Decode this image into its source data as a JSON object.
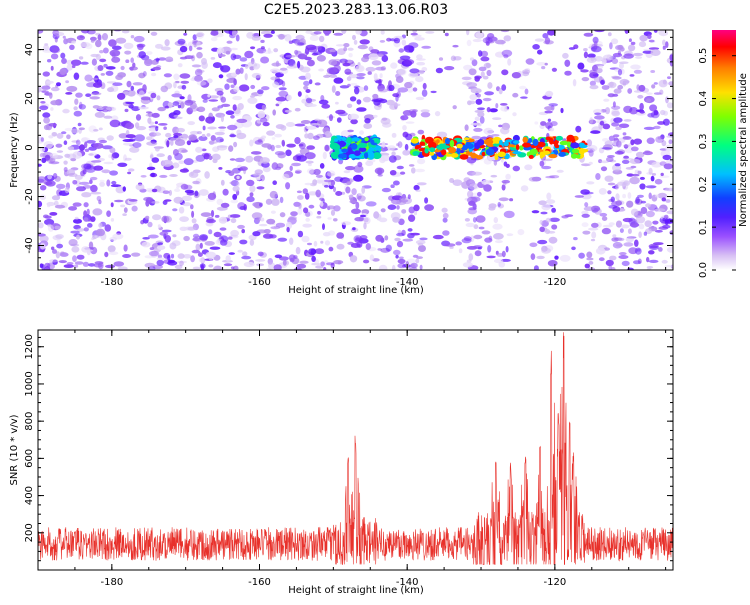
{
  "title": "C2E5.2023.283.13.06.R03",
  "colors": {
    "snr_line": "#e8312b",
    "frame": "#000000"
  },
  "chart_data": [
    {
      "type": "heatmap",
      "xlabel": "Height of straight line (km)",
      "ylabel": "Frequency (Hz)",
      "xlim": [
        -190,
        -104
      ],
      "ylim": [
        -50,
        48
      ],
      "x_ticks": [
        -180,
        -160,
        -140,
        -120
      ],
      "x_tick_labels": [
        "-180",
        "-160",
        "-140",
        "-120"
      ],
      "y_ticks": [
        -40,
        -20,
        0,
        20,
        40
      ],
      "y_tick_labels": [
        "-40",
        "-20",
        "0",
        "20",
        "40"
      ],
      "colorbar": {
        "label": "Normalized spectral amplitude",
        "range": [
          0,
          0.56
        ],
        "ticks": [
          0.0,
          0.1,
          0.2,
          0.3,
          0.4,
          0.5
        ],
        "tick_labels": [
          "0.0",
          "0.1",
          "0.2",
          "0.3",
          "0.4",
          "0.5"
        ],
        "colormap": [
          "#ffffff",
          "#c8a8f0",
          "#8030ff",
          "#2020ff",
          "#00c8ff",
          "#00ff60",
          "#e0ff00",
          "#ffa000",
          "#ff0000",
          "#ff0080"
        ]
      },
      "signal_band": {
        "frequency_hz": 0,
        "segments": [
          {
            "x_start": -150,
            "x_end": -144,
            "peak": 0.27
          },
          {
            "x_start": -139,
            "x_end": -116,
            "peak": 0.56
          }
        ]
      },
      "low_noise_regions": [
        {
          "x_start": -138,
          "x_end": -132
        },
        {
          "x_start": -126,
          "x_end": -122
        },
        {
          "x_start": -120,
          "x_end": -116
        }
      ]
    },
    {
      "type": "line",
      "xlabel": "Height of straight line (km)",
      "ylabel": "SNR (10 * v/v)",
      "xlim": [
        -190,
        -104
      ],
      "ylim": [
        0,
        1290
      ],
      "x_ticks": [
        -180,
        -160,
        -140,
        -120
      ],
      "x_tick_labels": [
        "-180",
        "-160",
        "-140",
        "-120"
      ],
      "y_ticks": [
        200,
        400,
        600,
        800,
        1000,
        1200
      ],
      "y_tick_labels": [
        "200",
        "400",
        "600",
        "800",
        "1000",
        "1200"
      ],
      "series": [
        {
          "baseline_mean": 140,
          "baseline_spread": 180,
          "peaks": [
            {
              "x": -147,
              "y": 730
            },
            {
              "x": -148,
              "y": 640
            },
            {
              "x": -128,
              "y": 600
            },
            {
              "x": -126,
              "y": 620
            },
            {
              "x": -124,
              "y": 660
            },
            {
              "x": -122,
              "y": 700
            },
            {
              "x": -120.5,
              "y": 1230
            },
            {
              "x": -119.5,
              "y": 900
            },
            {
              "x": -118.8,
              "y": 1290
            },
            {
              "x": -118,
              "y": 800
            },
            {
              "x": -117.5,
              "y": 640
            }
          ]
        }
      ]
    }
  ]
}
